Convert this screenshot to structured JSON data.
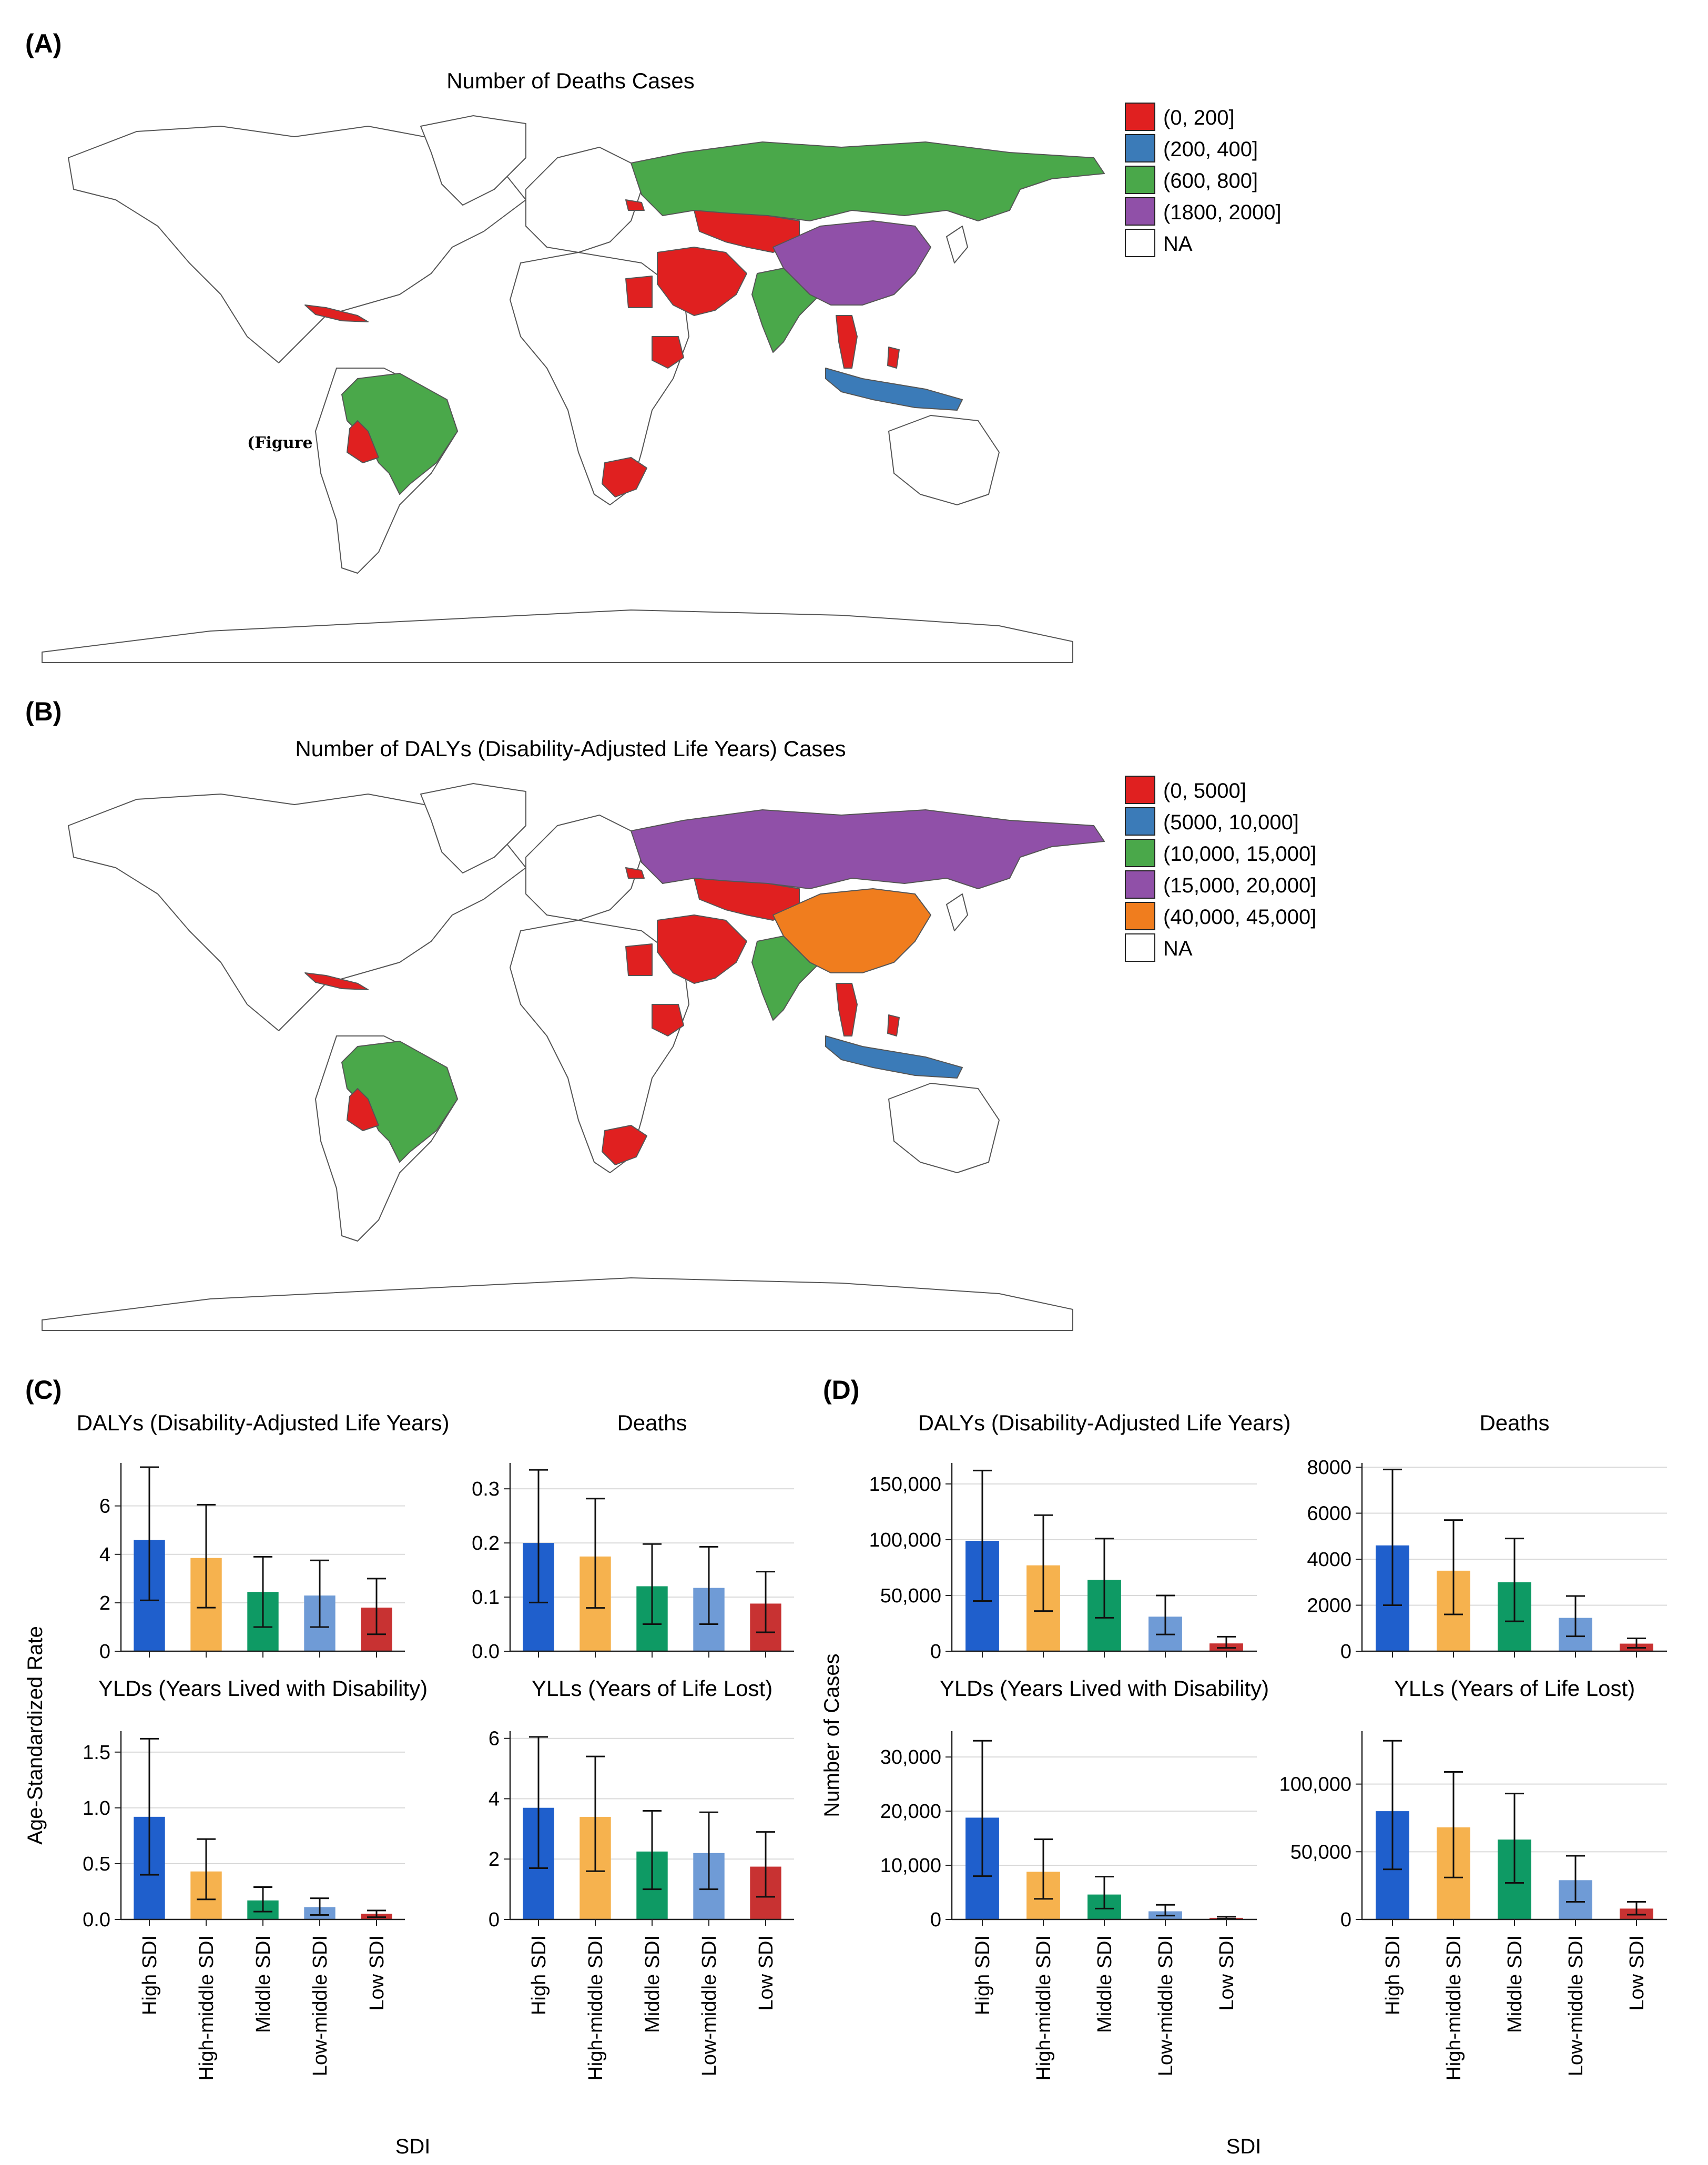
{
  "colors": {
    "red": "#e02020",
    "blue": "#3b7bb8",
    "green": "#4aa84a",
    "purple": "#9050a8",
    "orange": "#f07d1e",
    "na": "#ffffff",
    "bar_high": "#1f5fcc",
    "bar_highmid": "#f6b24e",
    "bar_mid": "#0e9a64",
    "bar_lowmid": "#6f9bd6",
    "bar_low": "#c83232"
  },
  "panelA": {
    "label": "(A)",
    "title": "Number of Deaths Cases",
    "annotation": "(Figure",
    "legend": [
      {
        "text": "(0, 200]",
        "color": "#e02020"
      },
      {
        "text": "(200, 400]",
        "color": "#3b7bb8"
      },
      {
        "text": "(600, 800]",
        "color": "#4aa84a"
      },
      {
        "text": "(1800, 2000]",
        "color": "#9050a8"
      },
      {
        "text": "NA",
        "color": "#ffffff"
      }
    ]
  },
  "panelB": {
    "label": "(B)",
    "title": "Number of DALYs (Disability-Adjusted Life Years) Cases",
    "legend": [
      {
        "text": "(0, 5000]",
        "color": "#e02020"
      },
      {
        "text": "(5000, 10,000]",
        "color": "#3b7bb8"
      },
      {
        "text": "(10,000, 15,000]",
        "color": "#4aa84a"
      },
      {
        "text": "(15,000, 20,000]",
        "color": "#9050a8"
      },
      {
        "text": "(40,000, 45,000]",
        "color": "#f07d1e"
      },
      {
        "text": "NA",
        "color": "#ffffff"
      }
    ]
  },
  "panelC": {
    "label": "(C)",
    "ylabel": "Age-Standardized Rate",
    "xlabel": "SDI"
  },
  "panelD": {
    "label": "(D)",
    "ylabel": "Number of Cases",
    "xlabel": "SDI"
  },
  "chart_data": [
    {
      "type": "bar",
      "panel": "C",
      "title": "DALYs (Disability-Adjusted Life Years)",
      "categories": [
        "High SDI",
        "High-middle SDI",
        "Middle SDI",
        "Low-middle SDI",
        "Low SDI"
      ],
      "values": [
        4.6,
        3.85,
        2.45,
        2.3,
        1.8
      ],
      "err_low": [
        2.1,
        1.8,
        1.0,
        1.0,
        0.7
      ],
      "err_high": [
        7.6,
        6.05,
        3.9,
        3.75,
        3.0
      ],
      "ylim": [
        0,
        7.6
      ],
      "yticks": [
        0,
        2,
        4,
        6
      ],
      "ytick_labels": [
        "0",
        "2",
        "4",
        "6"
      ]
    },
    {
      "type": "bar",
      "panel": "C",
      "title": "Deaths",
      "categories": [
        "High SDI",
        "High-middle SDI",
        "Middle SDI",
        "Low-middle SDI",
        "Low SDI"
      ],
      "values": [
        0.2,
        0.175,
        0.12,
        0.117,
        0.088
      ],
      "err_low": [
        0.09,
        0.08,
        0.05,
        0.05,
        0.035
      ],
      "err_high": [
        0.335,
        0.282,
        0.198,
        0.193,
        0.147
      ],
      "ylim": [
        0,
        0.34
      ],
      "yticks": [
        0,
        0.1,
        0.2,
        0.3
      ],
      "ytick_labels": [
        "0.0",
        "0.1",
        "0.2",
        "0.3"
      ]
    },
    {
      "type": "bar",
      "panel": "C",
      "title": "YLDs (Years Lived with Disability)",
      "categories": [
        "High SDI",
        "High-middle SDI",
        "Middle SDI",
        "Low-middle SDI",
        "Low SDI"
      ],
      "values": [
        0.92,
        0.43,
        0.17,
        0.11,
        0.05
      ],
      "err_low": [
        0.4,
        0.18,
        0.07,
        0.04,
        0.02
      ],
      "err_high": [
        1.62,
        0.72,
        0.29,
        0.19,
        0.08
      ],
      "ylim": [
        0,
        1.65
      ],
      "yticks": [
        0,
        0.5,
        1.0,
        1.5
      ],
      "ytick_labels": [
        "0.0",
        "0.5",
        "1.0",
        "1.5"
      ]
    },
    {
      "type": "bar",
      "panel": "C",
      "title": "YLLs (Years of Life Lost)",
      "categories": [
        "High SDI",
        "High-middle SDI",
        "Middle SDI",
        "Low-middle SDI",
        "Low SDI"
      ],
      "values": [
        3.7,
        3.4,
        2.25,
        2.2,
        1.75
      ],
      "err_low": [
        1.7,
        1.6,
        1.0,
        1.0,
        0.75
      ],
      "err_high": [
        6.05,
        5.4,
        3.6,
        3.55,
        2.9
      ],
      "ylim": [
        0,
        6.1
      ],
      "yticks": [
        0,
        2,
        4,
        6
      ],
      "ytick_labels": [
        "0",
        "2",
        "4",
        "6"
      ]
    },
    {
      "type": "bar",
      "panel": "D",
      "title": "DALYs (Disability-Adjusted Life Years)",
      "categories": [
        "High SDI",
        "High-middle SDI",
        "Middle SDI",
        "Low-middle SDI",
        "Low SDI"
      ],
      "values": [
        99000,
        77000,
        64000,
        31000,
        7000
      ],
      "err_low": [
        45000,
        36000,
        30000,
        15000,
        3000
      ],
      "err_high": [
        162000,
        122000,
        101000,
        50000,
        13000
      ],
      "ylim": [
        0,
        165000
      ],
      "yticks": [
        0,
        50000,
        100000,
        150000
      ],
      "ytick_labels": [
        "0",
        "50,000",
        "100,000",
        "150,000"
      ]
    },
    {
      "type": "bar",
      "panel": "D",
      "title": "Deaths",
      "categories": [
        "High SDI",
        "High-middle SDI",
        "Middle SDI",
        "Low-middle SDI",
        "Low SDI"
      ],
      "values": [
        4600,
        3500,
        3000,
        1450,
        330
      ],
      "err_low": [
        2000,
        1600,
        1300,
        650,
        150
      ],
      "err_high": [
        7900,
        5700,
        4900,
        2400,
        560
      ],
      "ylim": [
        0,
        8000
      ],
      "yticks": [
        0,
        2000,
        4000,
        6000,
        8000
      ],
      "ytick_labels": [
        "0",
        "2000",
        "4000",
        "6000",
        "8000"
      ]
    },
    {
      "type": "bar",
      "panel": "D",
      "title": "YLDs (Years Lived with Disability)",
      "categories": [
        "High SDI",
        "High-middle SDI",
        "Middle SDI",
        "Low-middle SDI",
        "Low SDI"
      ],
      "values": [
        18800,
        8800,
        4600,
        1500,
        300
      ],
      "err_low": [
        8000,
        3800,
        2000,
        700,
        150
      ],
      "err_high": [
        33000,
        14800,
        7900,
        2700,
        500
      ],
      "ylim": [
        0,
        34000
      ],
      "yticks": [
        0,
        10000,
        20000,
        30000
      ],
      "ytick_labels": [
        "0",
        "10,000",
        "20,000",
        "30,000"
      ]
    },
    {
      "type": "bar",
      "panel": "D",
      "title": "YLLs (Years of Life Lost)",
      "categories": [
        "High SDI",
        "High-middle SDI",
        "Middle SDI",
        "Low-middle SDI",
        "Low SDI"
      ],
      "values": [
        80000,
        68000,
        59000,
        29000,
        8000
      ],
      "err_low": [
        37000,
        31000,
        27000,
        13000,
        3500
      ],
      "err_high": [
        132000,
        109000,
        93000,
        47000,
        13000
      ],
      "ylim": [
        0,
        136000
      ],
      "yticks": [
        0,
        50000,
        100000
      ],
      "ytick_labels": [
        "0",
        "50,000",
        "100,000"
      ]
    }
  ]
}
